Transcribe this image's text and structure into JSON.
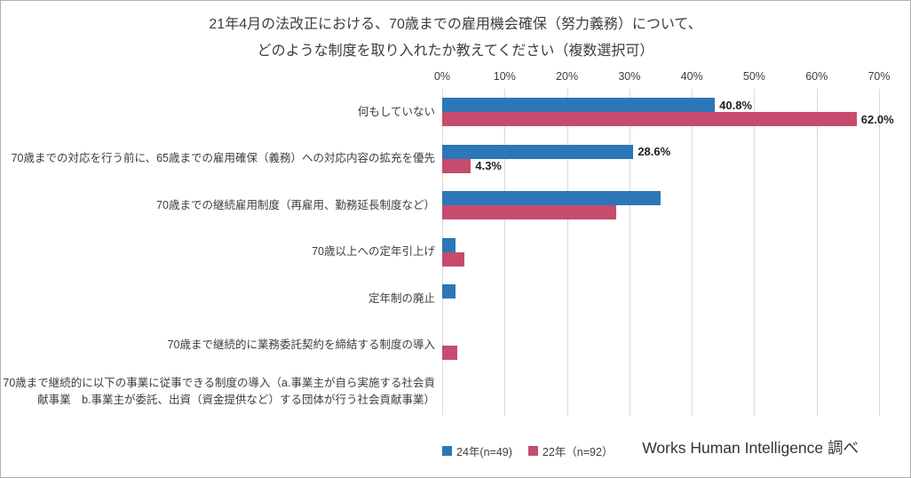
{
  "title": {
    "line1": "21年4月の法改正における、70歳までの雇用機会確保（努力義務）について、",
    "line2": "どのような制度を取り入れたか教えてください（複数選択可）"
  },
  "source": "Works Human Intelligence 調べ",
  "chart_data": {
    "type": "bar",
    "orientation": "horizontal",
    "title": "21年4月の法改正における、70歳までの雇用機会確保（努力義務）について、どのような制度を取り入れたか教えてください（複数選択可）",
    "x_axis": {
      "ticks": [
        "0%",
        "10%",
        "20%",
        "30%",
        "40%",
        "50%",
        "60%",
        "70%"
      ],
      "min": 0,
      "max": 70,
      "grid": true,
      "position": "top"
    },
    "categories": [
      "何もしていない",
      "70歳までの対応を行う前に、65歳までの雇用確保（義務）への対応内容の拡充を優先",
      "70歳までの継続雇用制度（再雇用、勤務延長制度など）",
      "70歳以上への定年引上げ",
      "定年制の廃止",
      "70歳まで継続的に業務委託契約を締結する制度の導入",
      "70歳まで継続的に以下の事業に従事できる制度の導入（a.事業主が自ら実施する社会貢献事業　b.事業主が委託、出資（資金提供など）する団体が行う社会貢献事業）"
    ],
    "series": [
      {
        "name": "24年(n=49)",
        "color": "#2b77b8",
        "values": [
          40.8,
          28.6,
          32.7,
          2.0,
          2.0,
          0,
          0
        ],
        "data_labels": [
          "40.8%",
          "28.6%",
          "",
          "",
          "",
          "",
          ""
        ]
      },
      {
        "name": "22年（n=92）",
        "color": "#c64c6d",
        "values": [
          62.0,
          4.3,
          26.1,
          3.3,
          0,
          2.2,
          0
        ],
        "data_labels": [
          "62.0%",
          "4.3%",
          "",
          "",
          "",
          "",
          ""
        ]
      }
    ],
    "legend_position": "bottom"
  }
}
